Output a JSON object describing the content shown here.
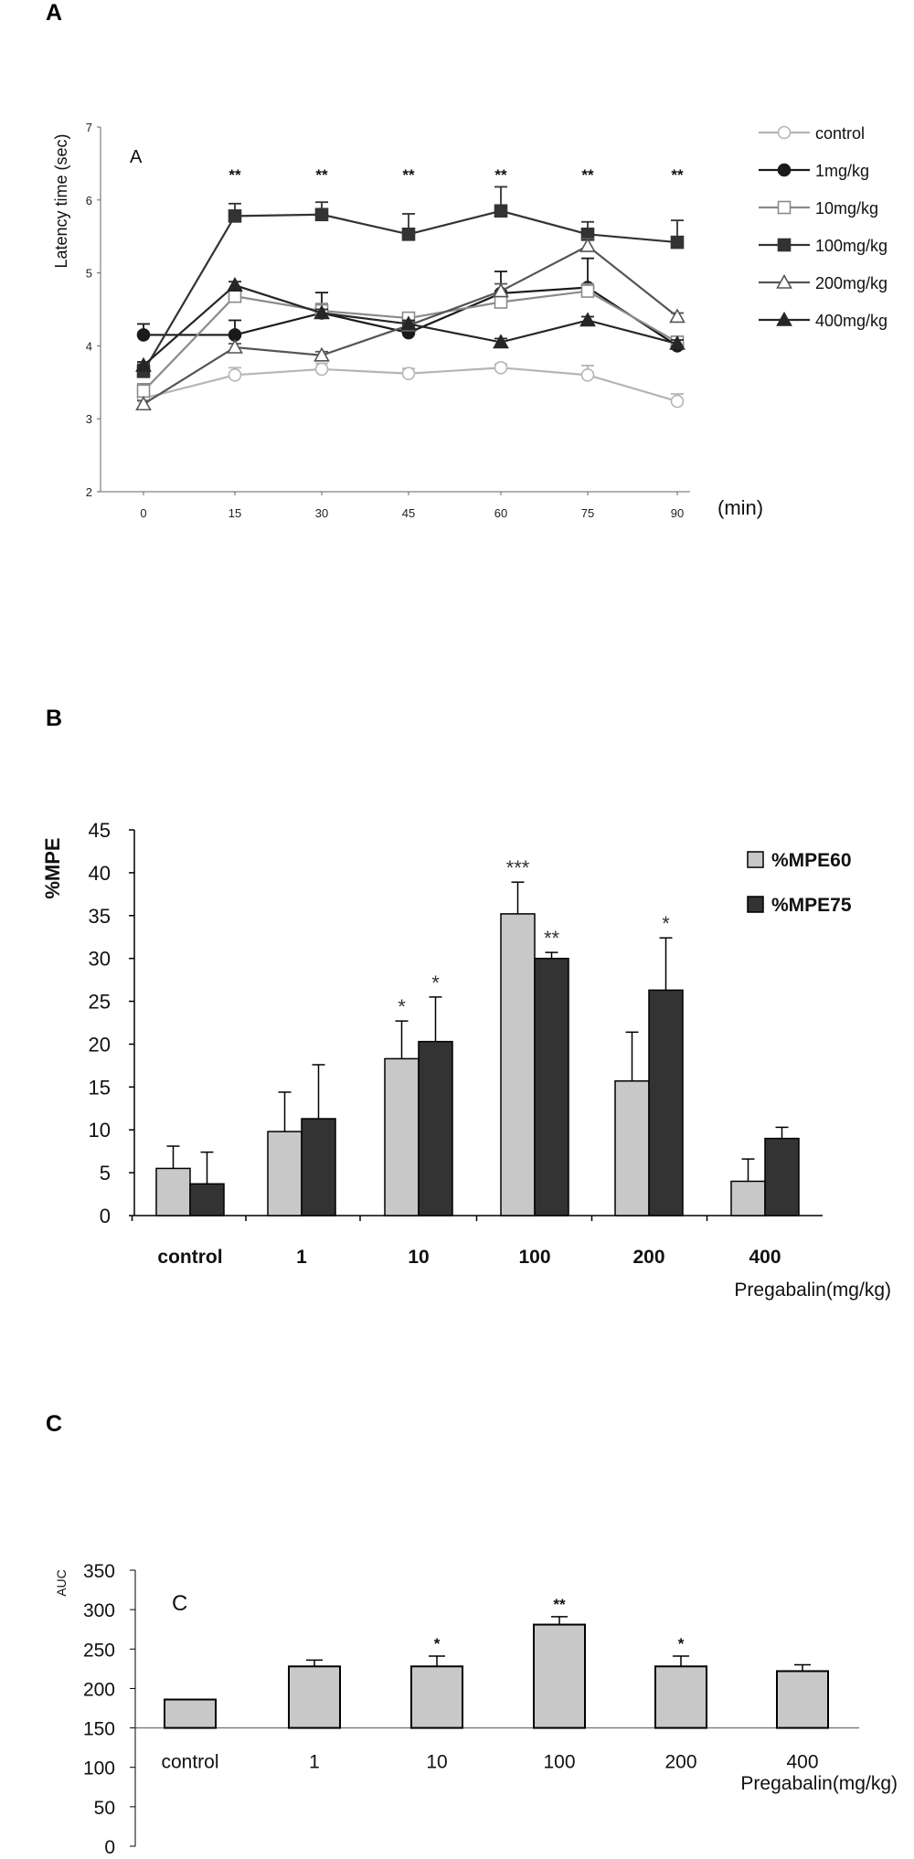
{
  "panels": {
    "a": "A",
    "b": "B",
    "c": "C"
  },
  "chart_data": [
    {
      "type": "line",
      "inset_label": "A",
      "ylabel": "Latency time (sec)",
      "xlabel": "(min)",
      "x": [
        0,
        15,
        30,
        45,
        60,
        75,
        90
      ],
      "ylim": [
        2,
        7
      ],
      "yticks": [
        2,
        3,
        4,
        5,
        6,
        7
      ],
      "grid": false,
      "legend_position": "right",
      "series": [
        {
          "name": "control",
          "marker": "circle-open",
          "color": "#b5b5b5",
          "values": [
            3.28,
            3.6,
            3.68,
            3.62,
            3.7,
            3.6,
            3.24
          ],
          "errors": [
            0.12,
            0.1,
            0.08,
            0.07,
            0.05,
            0.13,
            0.1
          ]
        },
        {
          "name": "1mg/kg",
          "marker": "circle-filled",
          "color": "#1a1a1a",
          "values": [
            4.15,
            4.15,
            4.45,
            4.18,
            4.72,
            4.8,
            4.0
          ],
          "errors": [
            0.15,
            0.2,
            0.28,
            0.1,
            0.3,
            0.4,
            0.12
          ]
        },
        {
          "name": "10mg/kg",
          "marker": "square-open",
          "color": "#8a8a8a",
          "values": [
            3.38,
            4.68,
            4.48,
            4.38,
            4.6,
            4.75,
            4.05
          ],
          "errors": [
            0.1,
            0.1,
            0.1,
            0.05,
            0.1,
            0.1,
            0.08
          ]
        },
        {
          "name": "100mg/kg",
          "marker": "square-filled",
          "color": "#333333",
          "values": [
            3.65,
            5.78,
            5.8,
            5.53,
            5.85,
            5.53,
            5.42
          ],
          "errors": [
            0.1,
            0.17,
            0.17,
            0.28,
            0.33,
            0.17,
            0.3
          ]
        },
        {
          "name": "200mg/kg",
          "marker": "triangle-open",
          "color": "#555555",
          "values": [
            3.2,
            3.98,
            3.87,
            4.28,
            4.75,
            5.37,
            4.4
          ],
          "errors": [
            0.05,
            0.05,
            0.05,
            0.05,
            0.1,
            0.1,
            0.05
          ]
        },
        {
          "name": "400mg/kg",
          "marker": "triangle-filled",
          "color": "#262626",
          "values": [
            3.73,
            4.83,
            4.45,
            4.3,
            4.05,
            4.35,
            4.03
          ],
          "errors": [
            0.05,
            0.05,
            0.05,
            0.05,
            0.05,
            0.05,
            0.05
          ]
        }
      ],
      "annotations": [
        {
          "x": 15,
          "text": "**"
        },
        {
          "x": 30,
          "text": "**"
        },
        {
          "x": 45,
          "text": "**"
        },
        {
          "x": 60,
          "text": "**"
        },
        {
          "x": 75,
          "text": "**"
        },
        {
          "x": 90,
          "text": "**"
        }
      ]
    },
    {
      "type": "bar",
      "ylabel": "%MPE",
      "xlabel": "Pregabalin(mg/kg)",
      "categories": [
        "control",
        "1",
        "10",
        "100",
        "200",
        "400"
      ],
      "ylim": [
        0,
        45
      ],
      "yticks": [
        0,
        5,
        10,
        15,
        20,
        25,
        30,
        35,
        40,
        45
      ],
      "grid": false,
      "legend_position": "top-right",
      "series": [
        {
          "name": "%MPE60",
          "color": "#c8c8c8",
          "values": [
            5.5,
            9.8,
            18.3,
            35.2,
            15.7,
            4.0
          ],
          "errors": [
            2.6,
            4.6,
            4.4,
            3.7,
            5.7,
            2.6
          ],
          "annotations": [
            "",
            "",
            "*",
            "***",
            "",
            ""
          ]
        },
        {
          "name": "%MPE75",
          "color": "#333333",
          "values": [
            3.7,
            11.3,
            20.3,
            30.0,
            26.3,
            9.0
          ],
          "errors": [
            3.7,
            6.3,
            5.2,
            0.7,
            6.1,
            1.3
          ],
          "annotations": [
            "",
            "",
            "*",
            "**",
            "*",
            ""
          ]
        }
      ]
    },
    {
      "type": "bar",
      "inset_label": "C",
      "ylabel": "AUC",
      "xlabel": "Pregabalin(mg/kg)",
      "categories": [
        "control",
        "1",
        "10",
        "100",
        "200",
        "400"
      ],
      "baseline": 150,
      "ylim": [
        0,
        350
      ],
      "yticks": [
        0,
        50,
        100,
        150,
        200,
        250,
        300,
        350
      ],
      "grid": false,
      "series": [
        {
          "name": "",
          "color": "#c8c8c8",
          "values": [
            186,
            228,
            228,
            281,
            228,
            222
          ],
          "errors": [
            0,
            8,
            13,
            10,
            13,
            8
          ],
          "annotations": [
            "",
            "",
            "*",
            "**",
            "*",
            ""
          ]
        }
      ]
    }
  ]
}
